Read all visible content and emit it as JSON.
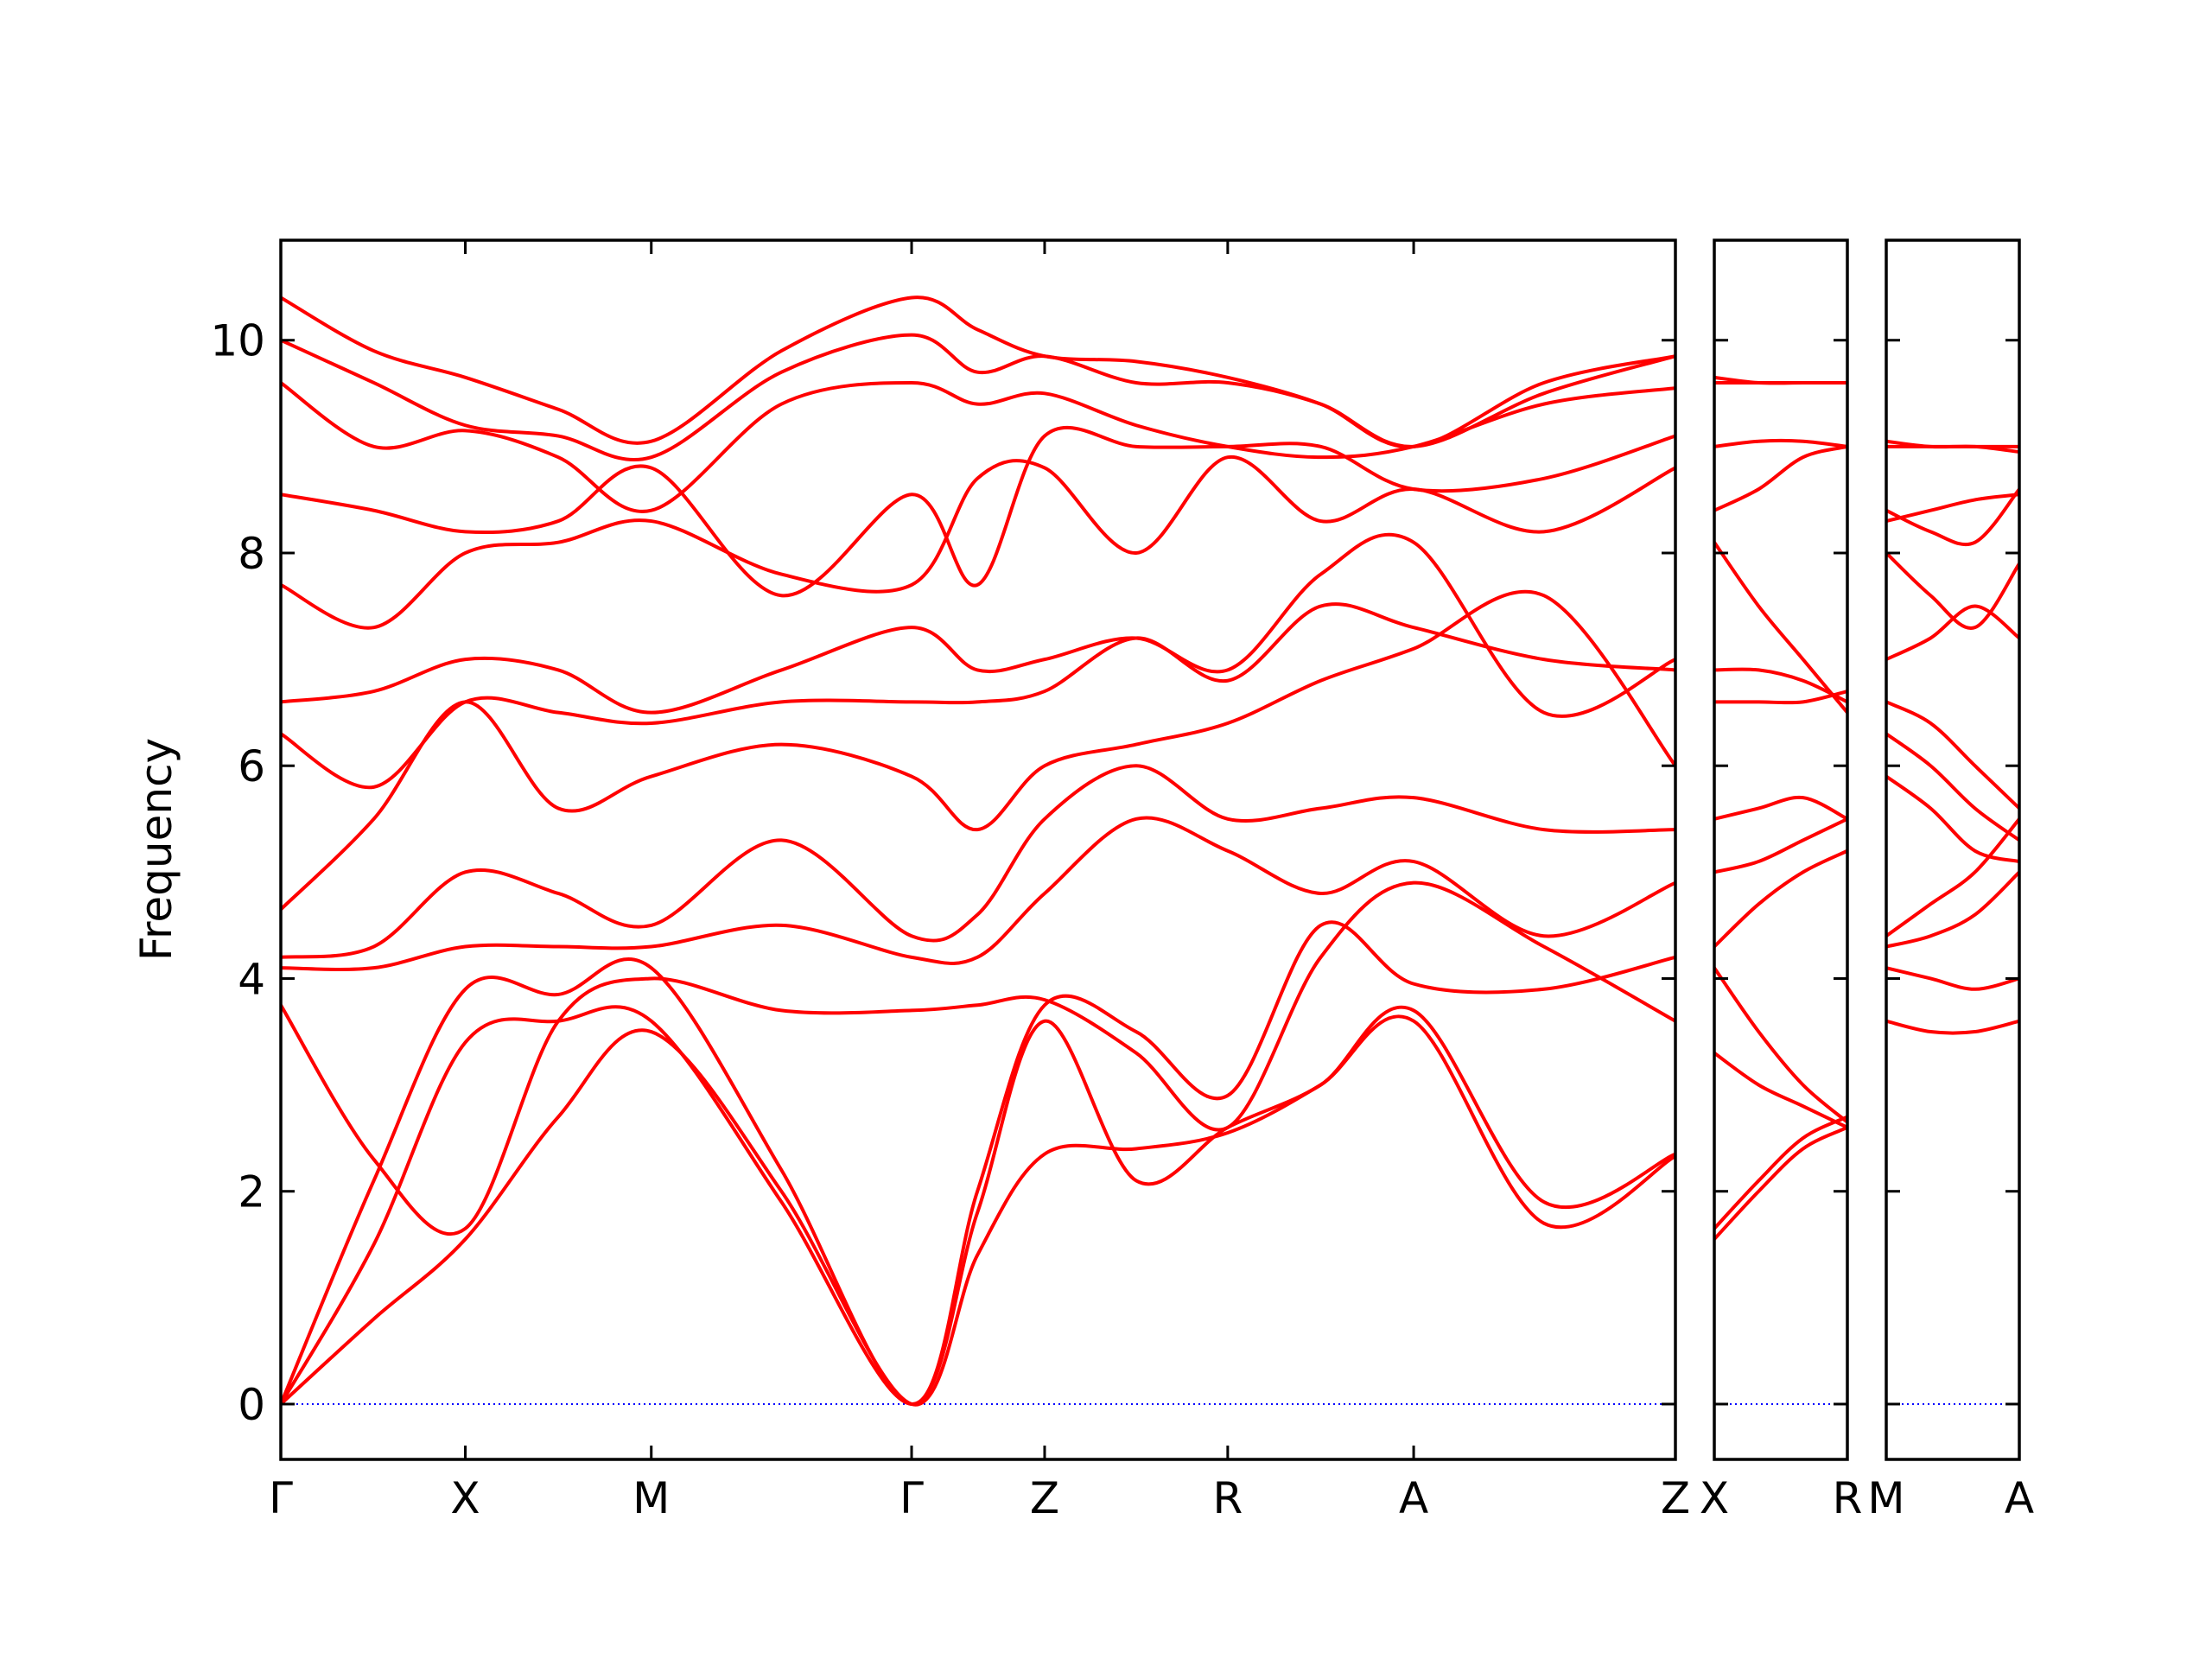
{
  "chart_data": [
    {
      "type": "line",
      "ylabel": "Frequency",
      "color": "#ff0000",
      "hline": 0,
      "hline_color": "#0000ff",
      "xlim": [
        0,
        9.75
      ],
      "ylim": [
        -0.52,
        10.94
      ],
      "xticks": [
        {
          "value": 0,
          "label": "Γ"
        },
        {
          "value": 1.29,
          "label": "X"
        },
        {
          "value": 2.59,
          "label": "M"
        },
        {
          "value": 4.41,
          "label": "Γ"
        },
        {
          "value": 5.34,
          "label": "Z"
        },
        {
          "value": 6.62,
          "label": "R"
        },
        {
          "value": 7.92,
          "label": "A"
        },
        {
          "value": 9.75,
          "label": "Z"
        }
      ],
      "yticks": [
        0,
        2,
        4,
        6,
        8,
        10
      ],
      "x": [
        0,
        0.65,
        1.29,
        1.94,
        2.59,
        3.5,
        4.41,
        4.87,
        5.34,
        5.98,
        6.62,
        7.27,
        7.92,
        8.83,
        9.75
      ],
      "series": [
        {
          "values": [
            0,
            0.8,
            1.55,
            2.7,
            3.5,
            2.0,
            0,
            1.4,
            2.35,
            2.4,
            2.55,
            3.0,
            3.6,
            1.7,
            2.33
          ]
        },
        {
          "values": [
            0,
            1.5,
            3.4,
            3.6,
            3.6,
            1.9,
            0,
            1.8,
            3.6,
            2.1,
            2.6,
            3.0,
            3.7,
            1.9,
            2.35
          ]
        },
        {
          "values": [
            0,
            2.1,
            3.9,
            3.85,
            4.1,
            2.2,
            0,
            2.0,
            3.75,
            3.5,
            2.9,
            4.5,
            3.95,
            3.9,
            4.2
          ]
        },
        {
          "values": [
            3.75,
            2.3,
            1.65,
            3.6,
            4.0,
            3.7,
            3.7,
            3.75,
            3.8,
            3.3,
            2.6,
            4.2,
            4.9,
            4.3,
            3.6
          ]
        },
        {
          "values": [
            4.1,
            4.1,
            4.3,
            4.3,
            4.3,
            4.5,
            4.2,
            4.2,
            4.8,
            5.5,
            5.2,
            4.8,
            5.1,
            4.4,
            4.9
          ]
        },
        {
          "values": [
            4.2,
            4.3,
            5.0,
            4.8,
            4.5,
            5.3,
            4.4,
            4.6,
            5.5,
            6.0,
            5.5,
            5.6,
            5.7,
            5.4,
            5.4
          ]
        },
        {
          "values": [
            4.65,
            5.5,
            6.6,
            5.6,
            5.9,
            6.2,
            5.9,
            5.4,
            6.0,
            6.2,
            6.4,
            6.8,
            7.1,
            7.6,
            6.0
          ]
        },
        {
          "values": [
            6.3,
            5.8,
            6.6,
            6.5,
            6.4,
            6.6,
            6.6,
            6.6,
            6.7,
            7.2,
            6.8,
            7.5,
            7.3,
            7.0,
            6.9
          ]
        },
        {
          "values": [
            6.6,
            6.7,
            7.0,
            6.9,
            6.5,
            6.9,
            7.3,
            6.9,
            7.0,
            7.2,
            6.9,
            7.8,
            8.1,
            6.5,
            7.0
          ]
        },
        {
          "values": [
            7.7,
            7.3,
            8.0,
            8.1,
            8.3,
            7.8,
            7.7,
            8.7,
            8.8,
            8.0,
            8.9,
            8.3,
            8.6,
            8.2,
            8.8
          ]
        },
        {
          "values": [
            8.55,
            8.4,
            8.2,
            8.3,
            8.8,
            7.6,
            8.55,
            7.7,
            9.1,
            9.0,
            9.0,
            9.0,
            8.6,
            8.7,
            9.1
          ]
        },
        {
          "values": [
            9.6,
            9.0,
            9.15,
            8.9,
            8.4,
            9.4,
            9.6,
            9.4,
            9.5,
            9.2,
            9.0,
            8.9,
            9.0,
            9.4,
            9.55
          ]
        },
        {
          "values": [
            10.0,
            9.6,
            9.2,
            9.1,
            8.9,
            9.7,
            10.05,
            9.7,
            9.85,
            9.6,
            9.6,
            9.4,
            9.0,
            9.5,
            9.85
          ]
        },
        {
          "values": [
            10.4,
            9.9,
            9.65,
            9.35,
            9.05,
            9.9,
            10.4,
            10.1,
            9.85,
            9.8,
            9.65,
            9.4,
            9.0,
            9.6,
            9.85
          ]
        }
      ]
    },
    {
      "type": "line",
      "color": "#ff0000",
      "hline": 0,
      "hline_color": "#0000ff",
      "xlim": [
        0,
        0.93
      ],
      "ylim": [
        -0.52,
        10.94
      ],
      "xticks": [
        {
          "value": 0,
          "label": "X"
        },
        {
          "value": 0.93,
          "label": "R"
        }
      ],
      "yticks": [
        0,
        2,
        4,
        6,
        8,
        10
      ],
      "x": [
        0,
        0.31,
        0.62,
        0.93
      ],
      "series": [
        {
          "values": [
            1.55,
            2.0,
            2.4,
            2.6
          ]
        },
        {
          "values": [
            1.65,
            2.1,
            2.5,
            2.7
          ]
        },
        {
          "values": [
            3.3,
            3.0,
            2.8,
            2.6
          ]
        },
        {
          "values": [
            4.1,
            3.5,
            3.0,
            2.65
          ]
        },
        {
          "values": [
            4.3,
            4.7,
            5.0,
            5.2
          ]
        },
        {
          "values": [
            5.0,
            5.1,
            5.3,
            5.5
          ]
        },
        {
          "values": [
            5.5,
            5.6,
            5.7,
            5.5
          ]
        },
        {
          "values": [
            6.6,
            6.6,
            6.6,
            6.7
          ]
        },
        {
          "values": [
            6.9,
            6.9,
            6.8,
            6.6
          ]
        },
        {
          "values": [
            8.1,
            7.5,
            7.0,
            6.5
          ]
        },
        {
          "values": [
            8.4,
            8.6,
            8.9,
            9.0
          ]
        },
        {
          "values": [
            9.0,
            9.05,
            9.05,
            9.0
          ]
        },
        {
          "values": [
            9.6,
            9.6,
            9.6,
            9.6
          ]
        },
        {
          "values": [
            9.65,
            9.6,
            9.6,
            9.6
          ]
        }
      ]
    },
    {
      "type": "line",
      "color": "#ff0000",
      "hline": 0,
      "hline_color": "#0000ff",
      "xlim": [
        0,
        0.93
      ],
      "ylim": [
        -0.52,
        10.94
      ],
      "xticks": [
        {
          "value": 0,
          "label": "M"
        },
        {
          "value": 0.93,
          "label": "A"
        }
      ],
      "yticks": [
        0,
        2,
        4,
        6,
        8,
        10
      ],
      "x": [
        0,
        0.31,
        0.62,
        0.93
      ],
      "series": [
        {
          "values": [
            3.6,
            3.5,
            3.5,
            3.6
          ]
        },
        {
          "values": [
            4.1,
            4.0,
            3.9,
            4.0
          ]
        },
        {
          "values": [
            4.3,
            4.4,
            4.6,
            5.0
          ]
        },
        {
          "values": [
            4.4,
            4.7,
            5.0,
            5.5
          ]
        },
        {
          "values": [
            5.9,
            5.6,
            5.2,
            5.1
          ]
        },
        {
          "values": [
            6.3,
            6.0,
            5.6,
            5.3
          ]
        },
        {
          "values": [
            6.6,
            6.4,
            6.0,
            5.6
          ]
        },
        {
          "values": [
            7.0,
            7.2,
            7.5,
            7.2
          ]
        },
        {
          "values": [
            8.0,
            7.6,
            7.3,
            7.9
          ]
        },
        {
          "values": [
            8.3,
            8.4,
            8.5,
            8.55
          ]
        },
        {
          "values": [
            8.4,
            8.2,
            8.1,
            8.6
          ]
        },
        {
          "values": [
            9.0,
            9.0,
            9.0,
            9.0
          ]
        },
        {
          "values": [
            9.05,
            9.0,
            9.0,
            8.95
          ]
        }
      ]
    }
  ]
}
